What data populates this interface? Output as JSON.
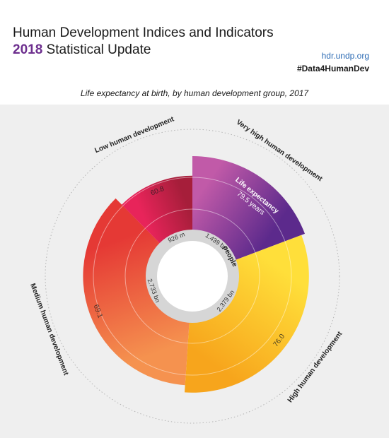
{
  "header": {
    "title": "Human Development Indices and Indicators",
    "subtitle_year": "2018",
    "subtitle_rest": " Statistical Update",
    "site": "hdr.undp.org",
    "hashtag": "#Data4HumanDev"
  },
  "chart_data": {
    "type": "polar-area",
    "title": "Life expectancy at birth, by human development group, 2017",
    "center_label": "people",
    "legend_annotation": {
      "label": "Life expectancy",
      "value": "79.5 years"
    },
    "angular_measure": "people (population)",
    "radial_measure": "life expectancy at birth (years)",
    "series": [
      {
        "name": "Very high human development",
        "people_bn": 1.439,
        "people_label": "1.439 bn",
        "life_expectancy": 79.5,
        "value_label": "",
        "colors": [
          "#c15aa8",
          "#5c2a8c"
        ]
      },
      {
        "name": "High human development",
        "people_bn": 2.379,
        "people_label": "2.379 bn",
        "life_expectancy": 76.0,
        "value_label": "76.0",
        "colors": [
          "#ffdf3a",
          "#f7a51c"
        ]
      },
      {
        "name": "Medium human development",
        "people_bn": 2.733,
        "people_label": "2.733 bn",
        "life_expectancy": 69.1,
        "value_label": "69.1",
        "colors": [
          "#f5924f",
          "#e53935"
        ]
      },
      {
        "name": "Low human development",
        "people_bn": 0.926,
        "people_label": "926 m",
        "life_expectancy": 60.8,
        "value_label": "60.8",
        "colors": [
          "#e8245a",
          "#a61e3a"
        ]
      }
    ]
  }
}
